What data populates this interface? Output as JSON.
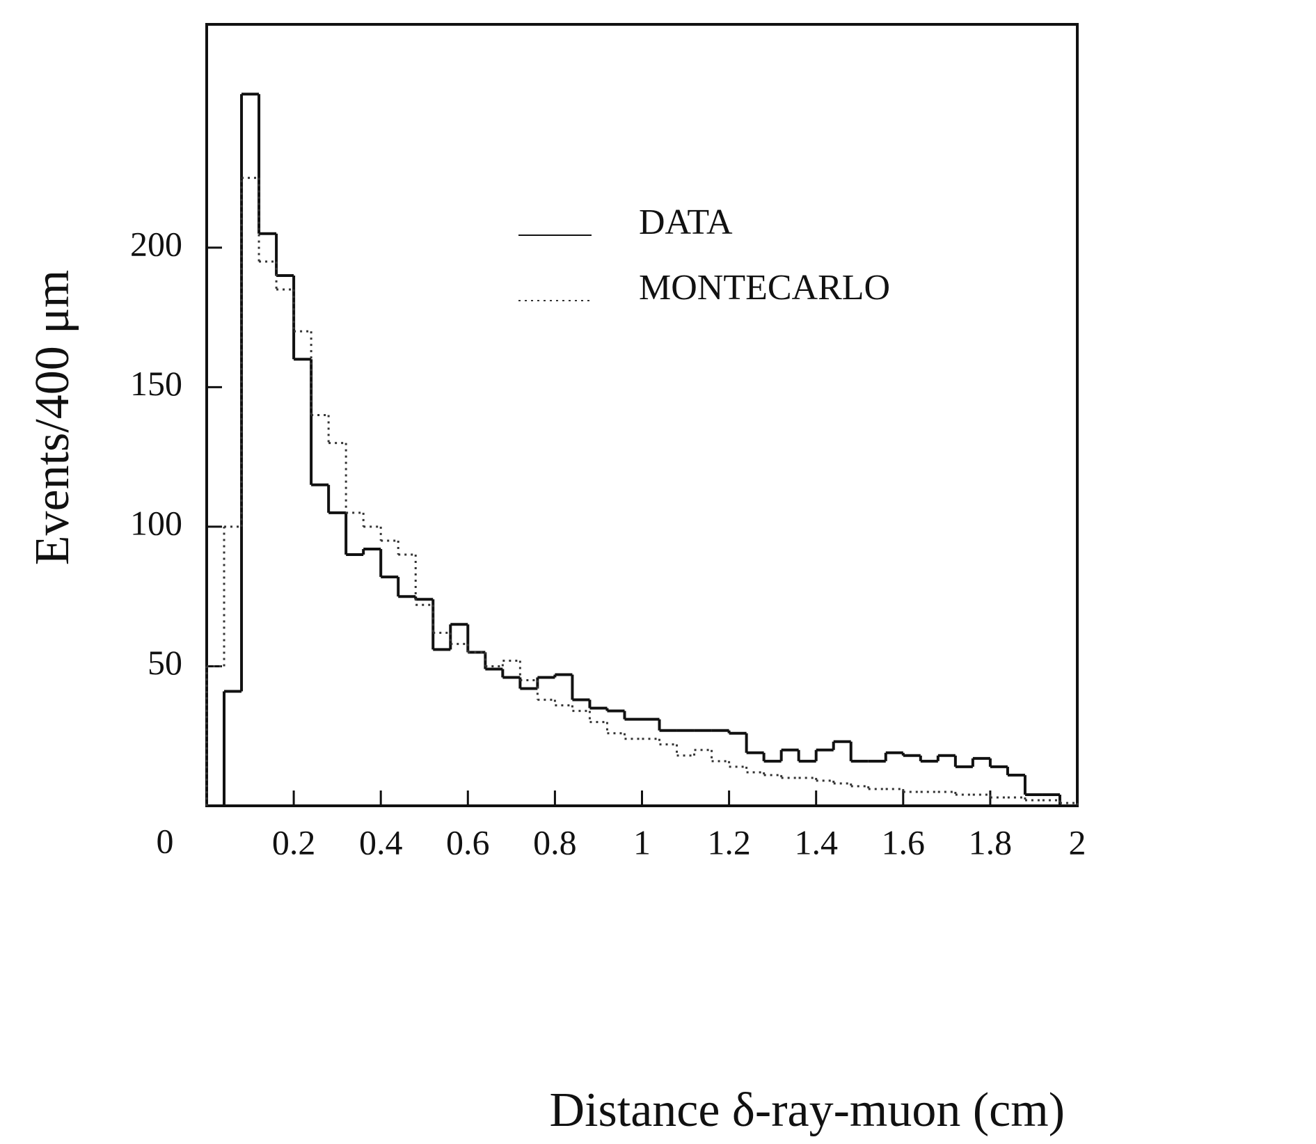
{
  "chart_data": {
    "type": "histogram",
    "xlabel": "Distance δ-ray-muon (cm)",
    "ylabel": "Events/400 μm",
    "xlim": [
      0,
      2
    ],
    "ylim": [
      0,
      280
    ],
    "xticks": [
      0.2,
      0.4,
      0.6,
      0.8,
      1,
      1.2,
      1.4,
      1.6,
      1.8,
      2
    ],
    "yticks": [
      0,
      50,
      100,
      150,
      200
    ],
    "bins": [
      0,
      0.04,
      0.08,
      0.12,
      0.16,
      0.2,
      0.24,
      0.28,
      0.32,
      0.36,
      0.4,
      0.44,
      0.48,
      0.52,
      0.56,
      0.6,
      0.64,
      0.68,
      0.72,
      0.76,
      0.8,
      0.84,
      0.88,
      0.92,
      0.96,
      1,
      1.04,
      1.08,
      1.12,
      1.16,
      1.2,
      1.24,
      1.28,
      1.32,
      1.36,
      1.4,
      1.44,
      1.48,
      1.52,
      1.56,
      1.6,
      1.64,
      1.68,
      1.72,
      1.76,
      1.8,
      1.84,
      1.88,
      1.92,
      1.96,
      2
    ],
    "series": [
      {
        "name": "DATA",
        "color": "#111111",
        "style": "solid",
        "values": [
          0,
          41,
          255,
          205,
          190,
          160,
          115,
          105,
          90,
          92,
          82,
          75,
          74,
          56,
          65,
          55,
          49,
          46,
          42,
          46,
          47,
          38,
          35,
          34,
          31,
          31,
          27,
          27,
          27,
          27,
          26,
          19,
          16,
          20,
          16,
          20,
          23,
          16,
          16,
          19,
          18,
          16,
          18,
          14,
          17,
          14,
          11,
          4,
          4,
          0
        ]
      },
      {
        "name": "MONTECARLO",
        "color": "#333333",
        "style": "dotted",
        "values": [
          50,
          100,
          225,
          195,
          185,
          170,
          140,
          130,
          105,
          100,
          95,
          90,
          72,
          62,
          58,
          55,
          50,
          52,
          45,
          38,
          36,
          34,
          30,
          26,
          24,
          24,
          22,
          18,
          20,
          16,
          14,
          12,
          11,
          10,
          10,
          9,
          8,
          7,
          6,
          6,
          5,
          5,
          5,
          4,
          4,
          3,
          3,
          2,
          2,
          1
        ]
      }
    ]
  }
}
